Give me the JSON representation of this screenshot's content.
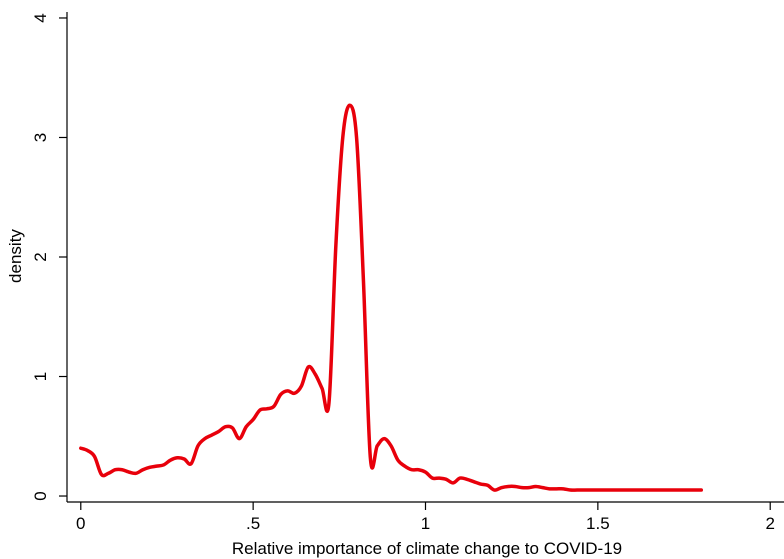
{
  "chart_data": {
    "type": "line",
    "title": "",
    "xlabel": "Relative importance of climate change to COVID-19",
    "ylabel": "density",
    "xlim": [
      -0.04,
      2.04
    ],
    "ylim": [
      -0.05,
      4.05
    ],
    "grid": false,
    "x_ticks": [
      0,
      0.5,
      1,
      1.5,
      2
    ],
    "x_tick_labels": [
      "0",
      ".5",
      "1",
      "1.5",
      "2"
    ],
    "y_ticks": [
      0,
      1,
      2,
      3,
      4
    ],
    "y_tick_labels": [
      "0",
      "1",
      "2",
      "3",
      "4"
    ],
    "series": [
      {
        "color": "#e8000b",
        "x": [
          0.0,
          0.02,
          0.04,
          0.06,
          0.08,
          0.1,
          0.12,
          0.14,
          0.16,
          0.18,
          0.2,
          0.22,
          0.24,
          0.26,
          0.28,
          0.3,
          0.32,
          0.34,
          0.36,
          0.38,
          0.4,
          0.42,
          0.44,
          0.46,
          0.48,
          0.5,
          0.52,
          0.54,
          0.56,
          0.58,
          0.6,
          0.62,
          0.64,
          0.66,
          0.68,
          0.7,
          0.72,
          0.74,
          0.76,
          0.78,
          0.8,
          0.82,
          0.84,
          0.86,
          0.88,
          0.9,
          0.92,
          0.94,
          0.96,
          0.98,
          1.0,
          1.02,
          1.04,
          1.06,
          1.08,
          1.1,
          1.12,
          1.14,
          1.16,
          1.18,
          1.2,
          1.22,
          1.24,
          1.26,
          1.28,
          1.3,
          1.32,
          1.34,
          1.36,
          1.38,
          1.4,
          1.42,
          1.44,
          1.46,
          1.48,
          1.5,
          1.52,
          1.54,
          1.56,
          1.58,
          1.6,
          1.62,
          1.64,
          1.66,
          1.68,
          1.7,
          1.72,
          1.74,
          1.76,
          1.78,
          1.8
        ],
        "y": [
          0.4,
          0.38,
          0.33,
          0.18,
          0.19,
          0.22,
          0.22,
          0.2,
          0.19,
          0.22,
          0.24,
          0.25,
          0.26,
          0.3,
          0.32,
          0.31,
          0.27,
          0.42,
          0.48,
          0.51,
          0.54,
          0.58,
          0.57,
          0.48,
          0.58,
          0.64,
          0.72,
          0.73,
          0.75,
          0.85,
          0.88,
          0.86,
          0.92,
          1.08,
          1.02,
          0.9,
          0.78,
          2.1,
          3.0,
          3.27,
          3.0,
          1.8,
          0.32,
          0.42,
          0.48,
          0.42,
          0.3,
          0.25,
          0.22,
          0.22,
          0.2,
          0.15,
          0.15,
          0.14,
          0.11,
          0.15,
          0.14,
          0.12,
          0.1,
          0.09,
          0.05,
          0.07,
          0.08,
          0.08,
          0.07,
          0.07,
          0.08,
          0.07,
          0.06,
          0.06,
          0.06,
          0.05,
          0.05,
          0.05,
          0.05,
          0.05,
          0.05,
          0.05,
          0.05,
          0.05,
          0.05,
          0.05,
          0.05,
          0.05,
          0.05,
          0.05,
          0.05,
          0.05,
          0.05,
          0.05,
          0.05
        ]
      }
    ]
  }
}
